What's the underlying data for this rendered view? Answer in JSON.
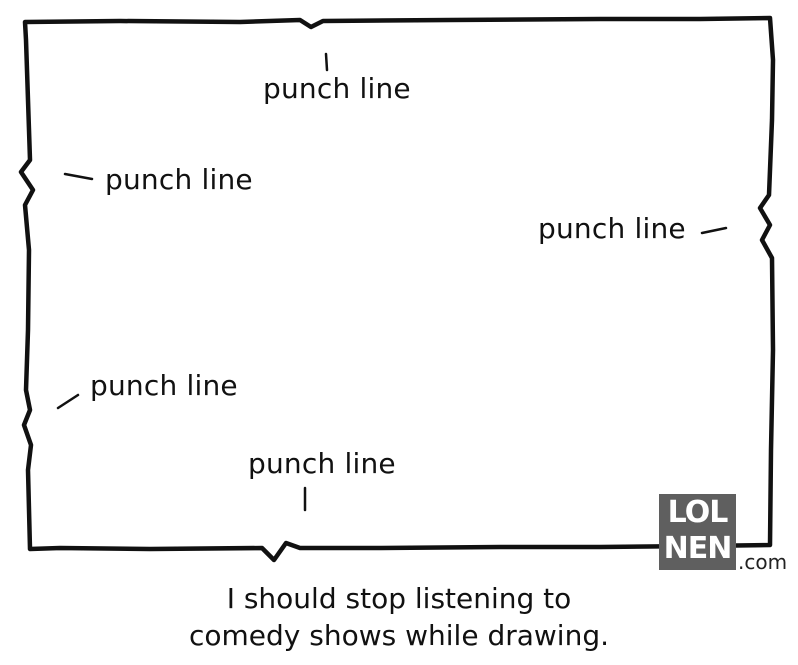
{
  "comic": {
    "labels": {
      "top": "punch line",
      "left_upper": "punch line",
      "right": "punch line",
      "left_lower": "punch line",
      "bottom": "punch line"
    },
    "caption": {
      "line1": "I should stop listening to",
      "line2": "comedy shows while drawing."
    },
    "logo": {
      "top": "LOL",
      "bottom": "NEN",
      "suffix": ".com",
      "background_color": "#5f5f5f"
    }
  }
}
